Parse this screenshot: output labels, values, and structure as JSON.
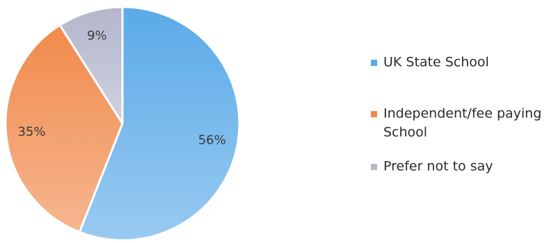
{
  "chart_data": {
    "type": "pie",
    "title": "",
    "slices": [
      {
        "label": "UK State School",
        "value": 56,
        "display": "56%",
        "color": "#5aaae8"
      },
      {
        "label": "Independent/fee paying School",
        "value": 35,
        "display": "35%",
        "color": "#f08a4b"
      },
      {
        "label": "Prefer not to say",
        "value": 9,
        "display": "9%",
        "color": "#b3b6cc"
      }
    ],
    "legend_position": "right",
    "legend": [
      {
        "lines": [
          "UK State School"
        ],
        "color": "#5aaae8"
      },
      {
        "lines": [
          "Independent/fee paying",
          "School"
        ],
        "color": "#f08a4b"
      },
      {
        "lines": [
          "Prefer not to say"
        ],
        "color": "#b3b6cc"
      }
    ]
  }
}
